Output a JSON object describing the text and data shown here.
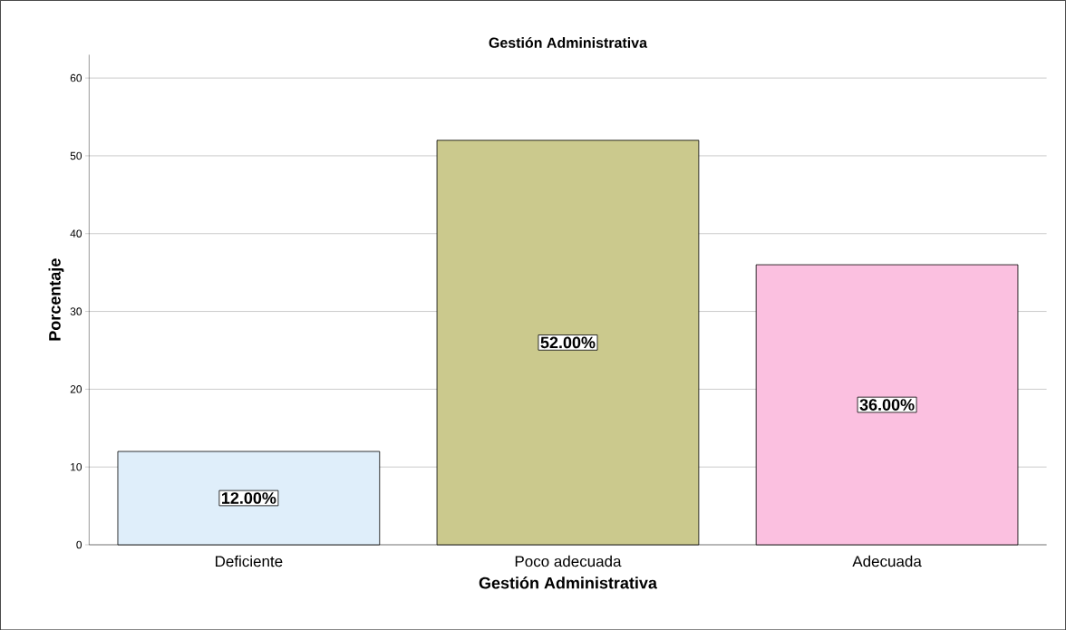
{
  "chart_data": {
    "type": "bar",
    "title": "Gestión Administrativa",
    "xlabel": "Gestión Administrativa",
    "ylabel": "Porcentaje",
    "categories": [
      "Deficiente",
      "Poco adecuada",
      "Adecuada"
    ],
    "values": [
      12,
      52,
      36
    ],
    "colors": [
      "#dfeefa",
      "#cbc98d",
      "#fbc0e0"
    ],
    "value_labels": [
      "12.00%",
      "52.00%",
      "36.00%"
    ],
    "ylim": [
      0,
      63
    ],
    "yticks": [
      0,
      10,
      20,
      30,
      40,
      50,
      60
    ],
    "grid": "y"
  }
}
